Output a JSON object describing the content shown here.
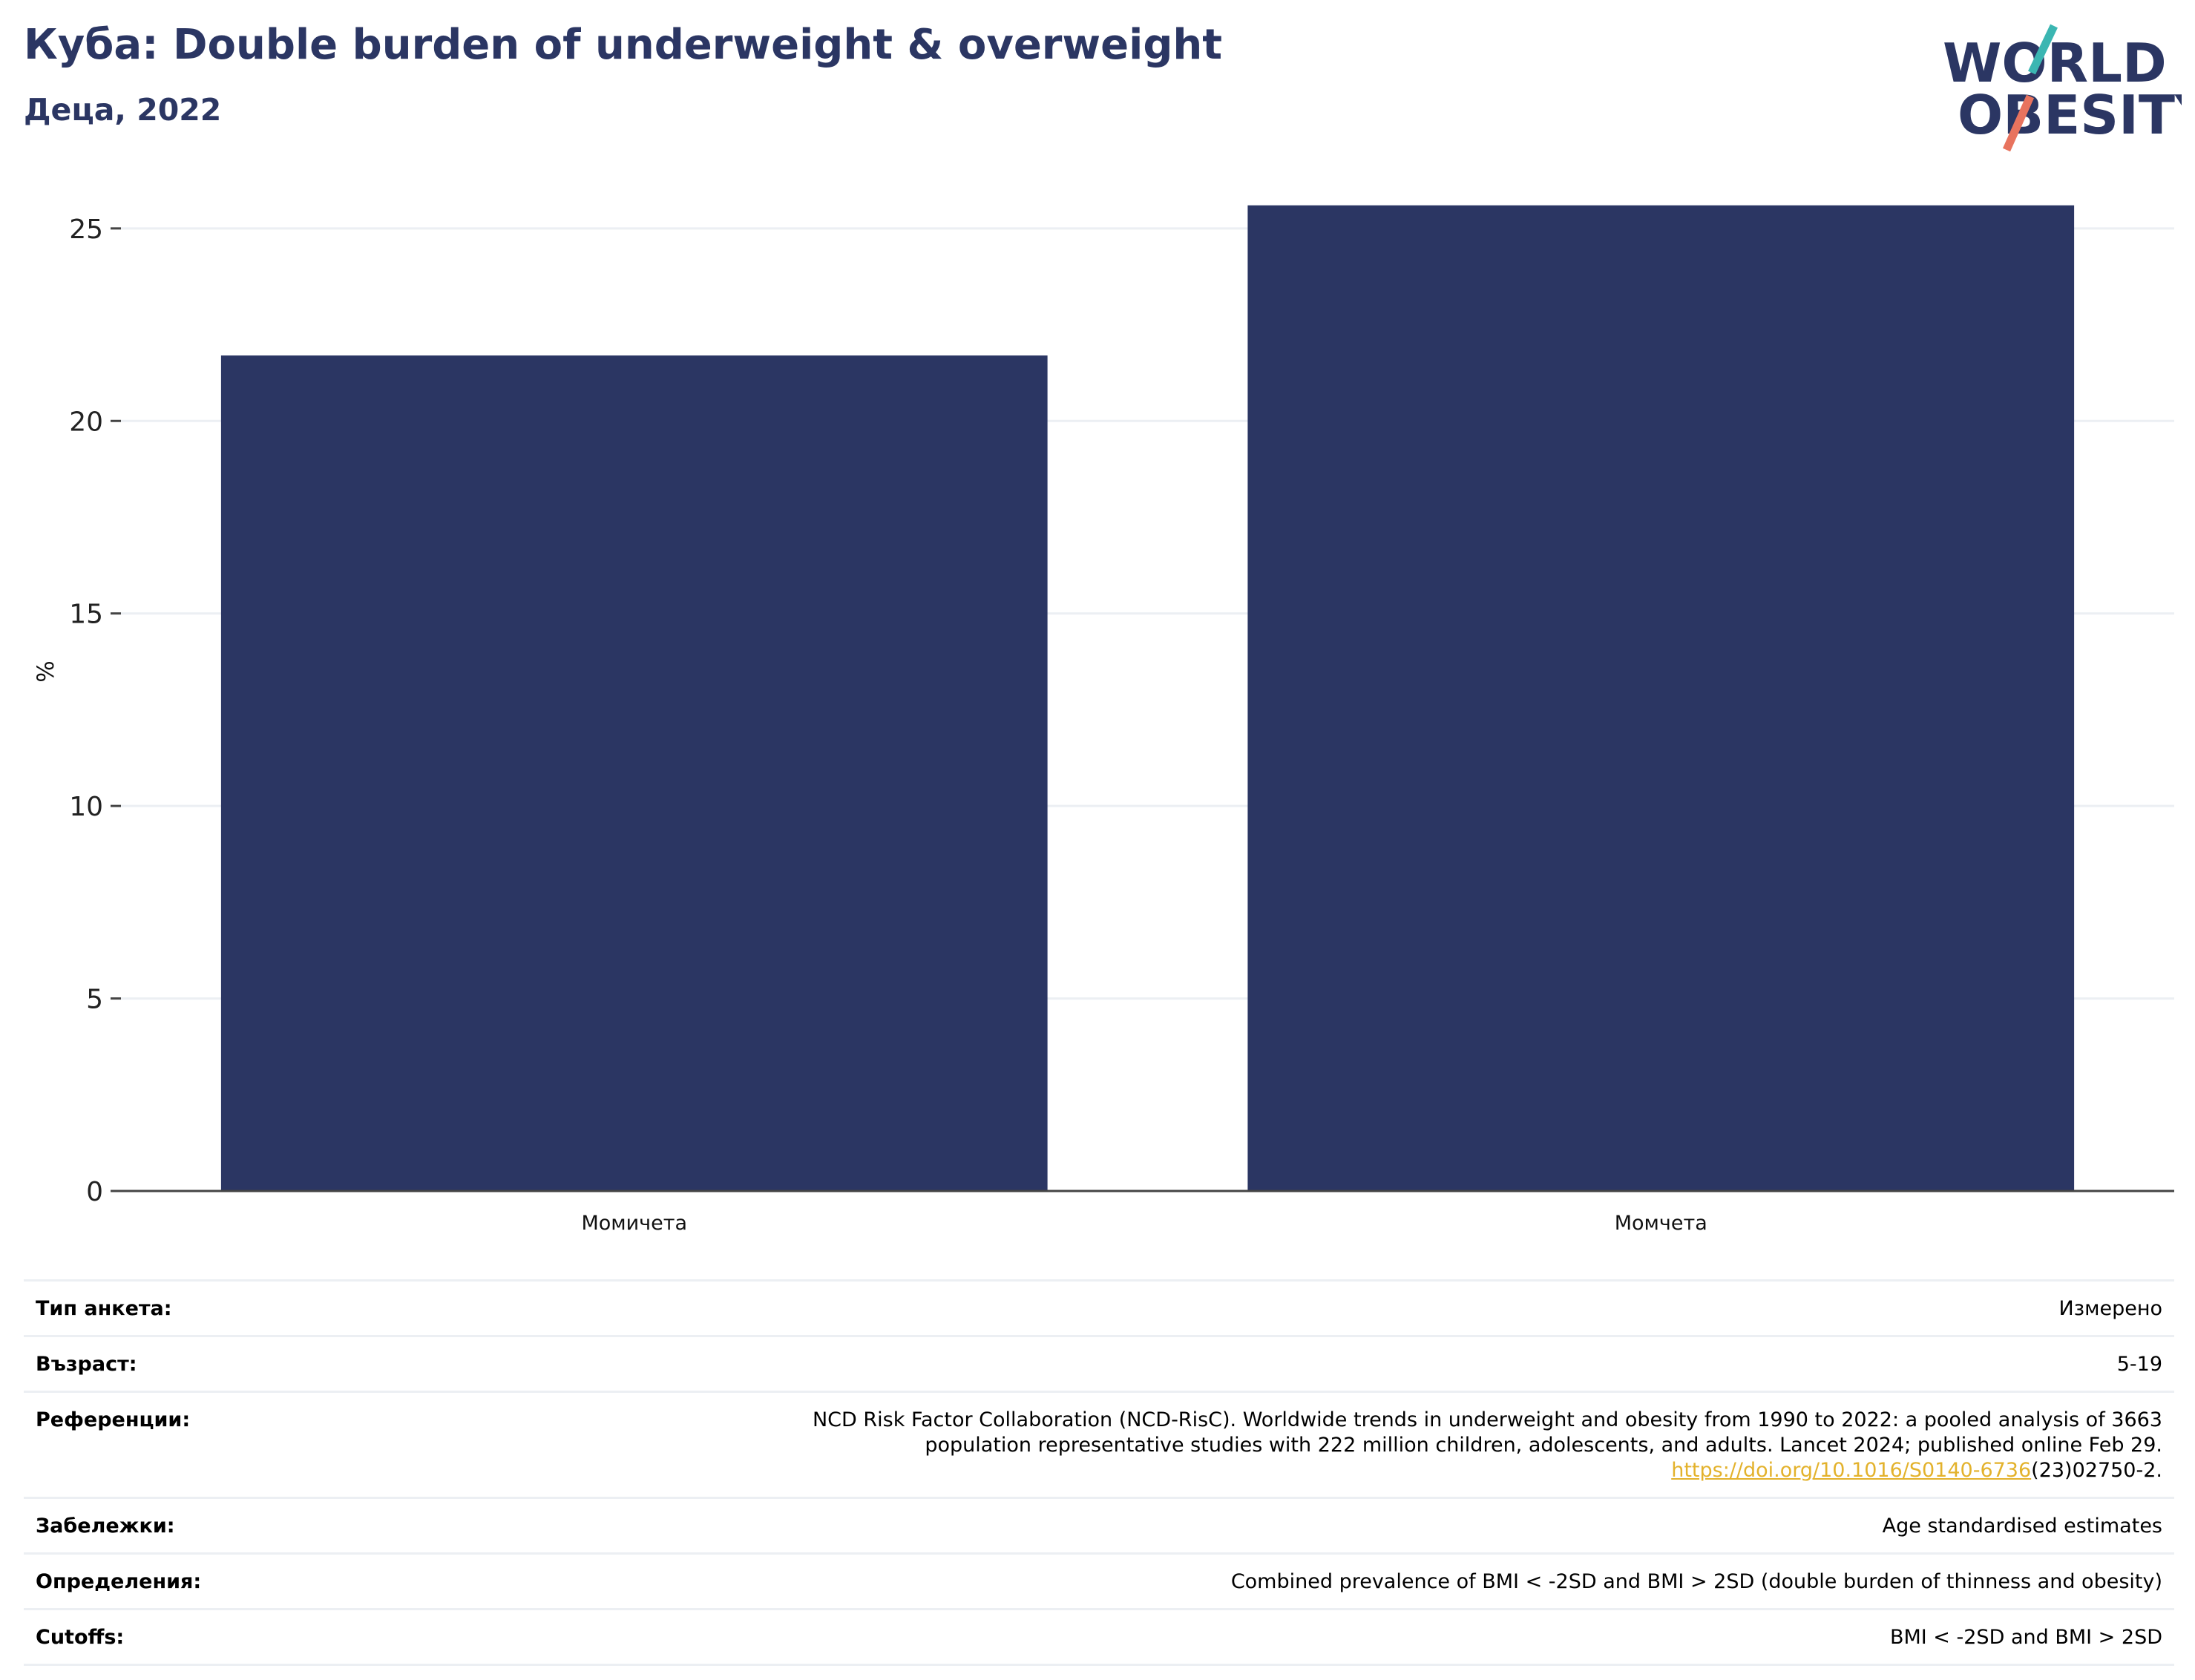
{
  "header": {
    "title": "Куба: Double burden of underweight & overweight",
    "subtitle": "Деца, 2022"
  },
  "logo": {
    "line1": "WORLD",
    "line2": "OBESITY",
    "colors": {
      "text": "#2b3663",
      "teal": "#3bb6b2",
      "coral": "#e8735e"
    }
  },
  "chart_data": {
    "type": "bar",
    "categories": [
      "Момичета",
      "Момчета"
    ],
    "values": [
      21.7,
      25.6
    ],
    "ylabel": "%",
    "ylim": [
      0,
      26.5
    ],
    "yticks": [
      0,
      5,
      10,
      15,
      20,
      25
    ],
    "grid": true,
    "bar_color": "#2b3663"
  },
  "meta": {
    "survey_type_label": "Тип анкета:",
    "survey_type_value": "Измерено",
    "age_label": "Възраст:",
    "age_value": "5-19",
    "references_label": "Референции:",
    "references_line1": "NCD Risk Factor Collaboration (NCD-RisC). Worldwide trends in underweight and obesity from 1990 to 2022: a pooled analysis of 3663",
    "references_line2": "population representative studies with 222 million children, adolescents, and adults. Lancet 2024; published online Feb 29.",
    "references_link": "https://doi.org/10.1016/S0140-6736",
    "references_link_tail": "(23)02750-2.",
    "notes_label": "Забележки:",
    "notes_value": "Age standardised estimates",
    "definitions_label": "Определения:",
    "definitions_value": "Combined prevalence of BMI < -2SD and BMI > 2SD (double burden of thinness and obesity)",
    "cutoffs_label": "Cutoffs:",
    "cutoffs_value": "BMI < -2SD and BMI > 2SD"
  }
}
